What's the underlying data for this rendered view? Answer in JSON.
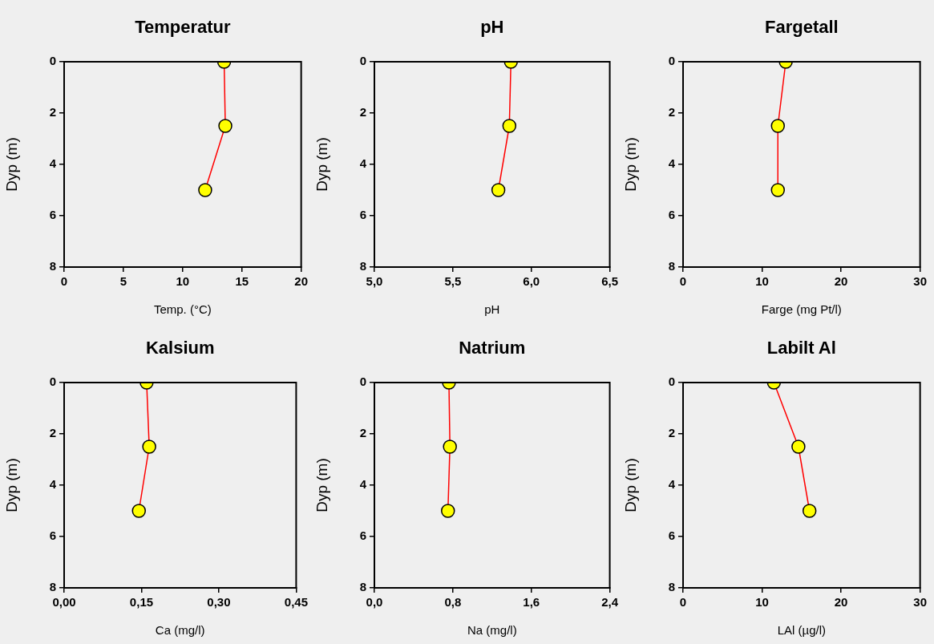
{
  "chart_data": [
    {
      "type": "line",
      "title": "Temperatur",
      "xlabel": "Temp. (°C)",
      "ylabel": "Dyp (m)",
      "xlim": [
        0,
        20
      ],
      "xticks": [
        0,
        5,
        10,
        15,
        20
      ],
      "ylim": [
        8,
        0
      ],
      "yticks": [
        0,
        2,
        4,
        6,
        8
      ],
      "marker": "circle",
      "line_style": "solid",
      "series": [
        {
          "color": "#ff0000",
          "colors": [
            "#ffff00",
            "#ffff00",
            "#ffff00"
          ],
          "x": [
            13.5,
            13.6,
            11.9
          ],
          "values": [
            0,
            2.5,
            5
          ]
        }
      ]
    },
    {
      "type": "line",
      "title": "pH",
      "xlabel": "pH",
      "ylabel": "Dyp (m)",
      "xlim": [
        5,
        6.5
      ],
      "xticks": [
        {
          "value": 5,
          "label": "5,0"
        },
        {
          "value": 5.5,
          "label": "5,5"
        },
        {
          "value": 6,
          "label": "6,0"
        },
        {
          "value": 6.5,
          "label": "6,5"
        }
      ],
      "ylim": [
        8,
        0
      ],
      "yticks": [
        0,
        2,
        4,
        6,
        8
      ],
      "marker": "circle",
      "line_style": "solid",
      "series": [
        {
          "color": "#ff0000",
          "colors": [
            "#ffff00",
            "#ffff00",
            "#ffff00"
          ],
          "x": [
            5.87,
            5.86,
            5.79
          ],
          "values": [
            0,
            2.5,
            5
          ]
        }
      ]
    },
    {
      "type": "line",
      "title": "Fargetall",
      "xlabel": "Farge (mg Pt/l)",
      "ylabel": "Dyp (m)",
      "xlim": [
        0,
        30
      ],
      "xticks": [
        0,
        10,
        20,
        30
      ],
      "ylim": [
        8,
        0
      ],
      "yticks": [
        0,
        2,
        4,
        6,
        8
      ],
      "marker": "circle",
      "line_style": "solid",
      "series": [
        {
          "color": "#ff0000",
          "colors": [
            "#ffff00",
            "#ffff00",
            "#ffff00"
          ],
          "x": [
            13,
            12,
            12
          ],
          "values": [
            0,
            2.5,
            5
          ]
        }
      ]
    },
    {
      "type": "line",
      "title": "Kalsium",
      "xlabel": "Ca (mg/l)",
      "ylabel": "Dyp (m)",
      "xlim": [
        0,
        0.45
      ],
      "xticks": [
        {
          "value": 0,
          "label": "0,00"
        },
        {
          "value": 0.15,
          "label": "0,15"
        },
        {
          "value": 0.3,
          "label": "0,30"
        },
        {
          "value": 0.45,
          "label": "0,45"
        }
      ],
      "ylim": [
        8,
        0
      ],
      "yticks": [
        0,
        2,
        4,
        6,
        8
      ],
      "marker": "circle",
      "line_style": "solid",
      "series": [
        {
          "color": "#ff0000",
          "colors": [
            "#ffff00",
            "#ffff00",
            "#ffff00"
          ],
          "x": [
            0.16,
            0.165,
            0.145
          ],
          "values": [
            0,
            2.5,
            5
          ]
        }
      ]
    },
    {
      "type": "line",
      "title": "Natrium",
      "xlabel": "Na (mg/l)",
      "ylabel": "Dyp (m)",
      "xlim": [
        0,
        2.4
      ],
      "xticks": [
        {
          "value": 0,
          "label": "0,0"
        },
        {
          "value": 0.8,
          "label": "0,8"
        },
        {
          "value": 1.6,
          "label": "1,6"
        },
        {
          "value": 2.4,
          "label": "2,4"
        }
      ],
      "ylim": [
        8,
        0
      ],
      "yticks": [
        0,
        2,
        4,
        6,
        8
      ],
      "marker": "circle",
      "line_style": "solid",
      "series": [
        {
          "color": "#ff0000",
          "colors": [
            "#ffff00",
            "#ffff00",
            "#ffff00"
          ],
          "x": [
            0.76,
            0.77,
            0.75
          ],
          "values": [
            0,
            2.5,
            5
          ]
        }
      ]
    },
    {
      "type": "line",
      "title": "Labilt Al",
      "xlabel": "LAl (µg/l)",
      "ylabel": "Dyp (m)",
      "xlim": [
        0,
        30
      ],
      "xticks": [
        0,
        10,
        20,
        30
      ],
      "ylim": [
        8,
        0
      ],
      "yticks": [
        0,
        2,
        4,
        6,
        8
      ],
      "marker": "circle",
      "line_style": "solid",
      "series": [
        {
          "color": "#ff0000",
          "colors": [
            "#ffff00",
            "#ffff00",
            "#ffff00"
          ],
          "x": [
            11.5,
            14.6,
            16
          ],
          "values": [
            0,
            2.5,
            5
          ]
        }
      ]
    }
  ]
}
